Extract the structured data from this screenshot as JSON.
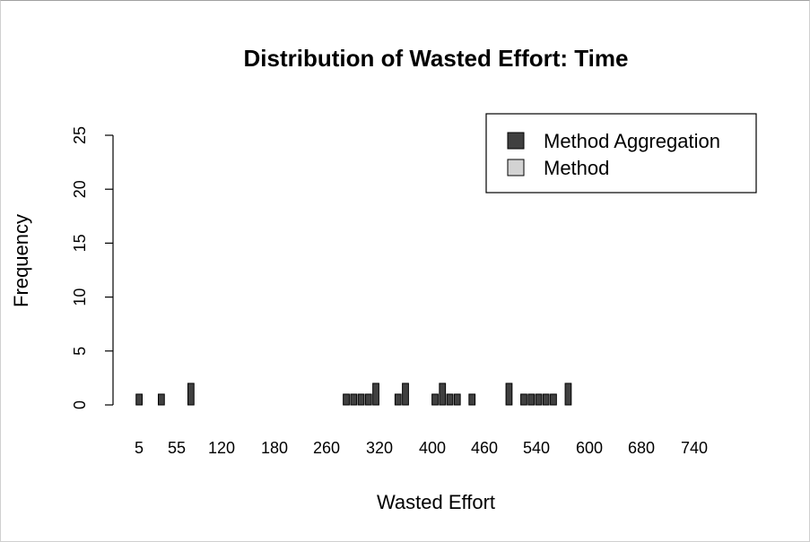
{
  "chart_data": {
    "type": "bar",
    "title": "Distribution of Wasted Effort: Time",
    "xlabel": "Wasted Effort",
    "ylabel": "Frequency",
    "ylim": [
      0,
      25
    ],
    "yticks": [
      "0",
      "5",
      "10",
      "15",
      "20",
      "25"
    ],
    "xtick_labels": [
      "5",
      "55",
      "120",
      "180",
      "260",
      "320",
      "400",
      "460",
      "540",
      "600",
      "680",
      "740"
    ],
    "legend": {
      "position": "top-right"
    },
    "series": [
      {
        "name": "Method Aggregation",
        "color": "#404040",
        "values": [
          1,
          0,
          0,
          1,
          0,
          0,
          0,
          2,
          0,
          0,
          0,
          0,
          0,
          0,
          0,
          0,
          0,
          0,
          0,
          0,
          0,
          0,
          0,
          0,
          0,
          0,
          0,
          0,
          1,
          1,
          1,
          1,
          2,
          0,
          0,
          1,
          2,
          0,
          0,
          0,
          1,
          2,
          1,
          1,
          0,
          1,
          0,
          0,
          0,
          0,
          2,
          0,
          1,
          1,
          1,
          1,
          1,
          0,
          2,
          0,
          0,
          0,
          0,
          0,
          0,
          0,
          0,
          0,
          0,
          0,
          0,
          0,
          0,
          0,
          0,
          0,
          0,
          0,
          0,
          0,
          0
        ]
      },
      {
        "name": "Method",
        "color": "#d3d3d3",
        "values": [
          0,
          0,
          0,
          0,
          0,
          0,
          0,
          0,
          0,
          0,
          0,
          0,
          0,
          0,
          0,
          0,
          0,
          0,
          0,
          0,
          0,
          0,
          0,
          0,
          0,
          0,
          0,
          0,
          0,
          0,
          0,
          0,
          0,
          0,
          0,
          0,
          0,
          0,
          0,
          0,
          0,
          0,
          0,
          0,
          0,
          0,
          0,
          0,
          0,
          0,
          0,
          0,
          0,
          0,
          0,
          0,
          0,
          0,
          0,
          0,
          0,
          0,
          0,
          0,
          0,
          0,
          0,
          0,
          0,
          0,
          0,
          0,
          0,
          0,
          0,
          0,
          0,
          0,
          0,
          0,
          0
        ]
      }
    ]
  }
}
